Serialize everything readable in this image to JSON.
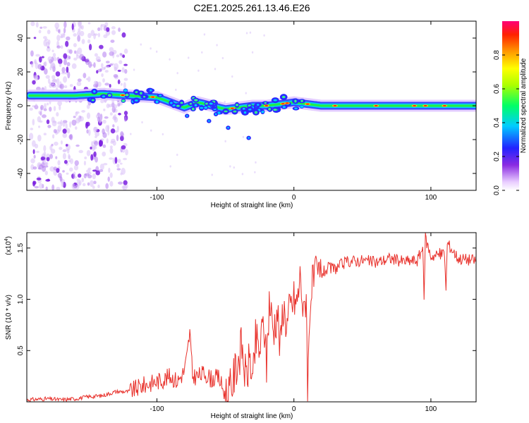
{
  "title": "C2E1.2025.261.13.46.E26",
  "chart_data": [
    {
      "type": "heatmap",
      "title": "C2E1.2025.261.13.46.E26",
      "xlabel": "Height of straight line (km)",
      "ylabel": "Frequency (Hz)",
      "xlim": [
        -195,
        133
      ],
      "ylim": [
        -50,
        50
      ],
      "xticks": [
        -100,
        0,
        100
      ],
      "xtick_labels": [
        "-100",
        "0",
        "100"
      ],
      "yticks": [
        -40,
        -20,
        0,
        20,
        40
      ],
      "ytick_labels": [
        "-40",
        "-20",
        "0",
        "20",
        "40"
      ],
      "colorbar": {
        "label": "Normalized spectral amplitude",
        "range": [
          0,
          1
        ],
        "ticks": [
          0.0,
          0.2,
          0.4,
          0.6,
          0.8
        ],
        "tick_labels": [
          "0.0",
          "0.2",
          "0.4",
          "0.6",
          "0.8"
        ]
      },
      "ridge": {
        "x": [
          -195,
          -180,
          -160,
          -140,
          -120,
          -100,
          -90,
          -80,
          -70,
          -60,
          -50,
          -40,
          -30,
          -20,
          -10,
          0,
          10,
          20,
          40,
          60,
          80,
          100,
          120,
          133
        ],
        "frequency": [
          6,
          6,
          6,
          7,
          6,
          5,
          2,
          -1,
          2,
          0,
          -2,
          -1,
          0,
          0,
          1,
          2,
          1,
          0,
          0,
          0,
          0,
          0,
          0,
          0
        ]
      }
    },
    {
      "type": "line",
      "xlabel": "Height of straight line (km)",
      "ylabel": "SNR (10 * v/v)",
      "multiplier": "(x10^4)",
      "multiplier_base": "(x10",
      "multiplier_exp": "4",
      "multiplier_close": ")",
      "xlim": [
        -195,
        133
      ],
      "ylim": [
        0,
        1.65
      ],
      "xticks": [
        -100,
        0,
        100
      ],
      "xtick_labels": [
        "-100",
        "0",
        "100"
      ],
      "yticks": [
        0.5,
        1.0,
        1.5
      ],
      "ytick_labels": [
        "0.5",
        "1.0",
        "1.5"
      ],
      "series": [
        {
          "name": "SNR",
          "color": "#e8302a",
          "x": [
            -195,
            -180,
            -170,
            -160,
            -150,
            -140,
            -130,
            -120,
            -110,
            -100,
            -95,
            -90,
            -85,
            -80,
            -78,
            -76,
            -74,
            -70,
            -65,
            -60,
            -55,
            -50,
            -46,
            -42,
            -38,
            -35,
            -32,
            -30,
            -28,
            -25,
            -22,
            -20,
            -18,
            -15,
            -12,
            -10,
            -8,
            -5,
            -3,
            0,
            2,
            5,
            7,
            9,
            10,
            12,
            15,
            20,
            25,
            30,
            35,
            40,
            50,
            60,
            70,
            80,
            90,
            94,
            95,
            96,
            100,
            110,
            111,
            112,
            120,
            133
          ],
          "y": [
            0.02,
            0.03,
            0.02,
            0.03,
            0.05,
            0.06,
            0.1,
            0.1,
            0.16,
            0.2,
            0.22,
            0.25,
            0.2,
            0.3,
            0.45,
            0.68,
            0.25,
            0.25,
            0.28,
            0.22,
            0.24,
            0.06,
            0.12,
            0.35,
            0.55,
            0.2,
            0.45,
            0.15,
            0.6,
            0.5,
            0.8,
            0.35,
            1.0,
            0.7,
            0.9,
            0.5,
            0.95,
            0.75,
            0.9,
            1.0,
            0.95,
            1.25,
            0.8,
            1.1,
            0.1,
            1.05,
            1.2,
            1.25,
            1.3,
            1.3,
            1.34,
            1.37,
            1.38,
            1.36,
            1.4,
            1.37,
            1.38,
            1.5,
            1.04,
            1.6,
            1.42,
            1.45,
            1.07,
            1.55,
            1.4,
            1.38
          ]
        }
      ]
    }
  ]
}
